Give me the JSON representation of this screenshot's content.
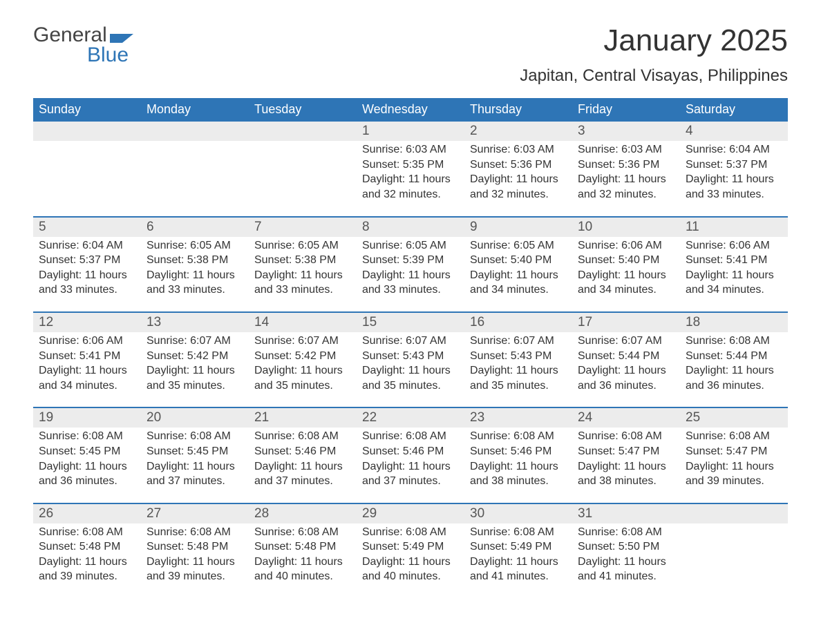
{
  "logo": {
    "text_top": "General",
    "text_bottom": "Blue",
    "shape_color": "#2e75b6",
    "top_color": "#444444",
    "bottom_color": "#2e75b6"
  },
  "title": "January 2025",
  "location": "Japitan, Central Visayas, Philippines",
  "colors": {
    "header_band": "#2e75b6",
    "header_text": "#ffffff",
    "daynum_band": "#ececec",
    "week_divider": "#2e75b6",
    "body_text": "#333333",
    "background": "#ffffff"
  },
  "typography": {
    "title_fontsize": 44,
    "location_fontsize": 24,
    "weekday_fontsize": 18,
    "daynum_fontsize": 19,
    "body_fontsize": 16,
    "font_family": "Arial"
  },
  "weekdays": [
    "Sunday",
    "Monday",
    "Tuesday",
    "Wednesday",
    "Thursday",
    "Friday",
    "Saturday"
  ],
  "labels": {
    "sunrise": "Sunrise",
    "sunset": "Sunset",
    "daylight": "Daylight"
  },
  "weeks": [
    [
      null,
      null,
      null,
      {
        "n": "1",
        "sunrise": "6:03 AM",
        "sunset": "5:35 PM",
        "daylight": "11 hours and 32 minutes."
      },
      {
        "n": "2",
        "sunrise": "6:03 AM",
        "sunset": "5:36 PM",
        "daylight": "11 hours and 32 minutes."
      },
      {
        "n": "3",
        "sunrise": "6:03 AM",
        "sunset": "5:36 PM",
        "daylight": "11 hours and 32 minutes."
      },
      {
        "n": "4",
        "sunrise": "6:04 AM",
        "sunset": "5:37 PM",
        "daylight": "11 hours and 33 minutes."
      }
    ],
    [
      {
        "n": "5",
        "sunrise": "6:04 AM",
        "sunset": "5:37 PM",
        "daylight": "11 hours and 33 minutes."
      },
      {
        "n": "6",
        "sunrise": "6:05 AM",
        "sunset": "5:38 PM",
        "daylight": "11 hours and 33 minutes."
      },
      {
        "n": "7",
        "sunrise": "6:05 AM",
        "sunset": "5:38 PM",
        "daylight": "11 hours and 33 minutes."
      },
      {
        "n": "8",
        "sunrise": "6:05 AM",
        "sunset": "5:39 PM",
        "daylight": "11 hours and 33 minutes."
      },
      {
        "n": "9",
        "sunrise": "6:05 AM",
        "sunset": "5:40 PM",
        "daylight": "11 hours and 34 minutes."
      },
      {
        "n": "10",
        "sunrise": "6:06 AM",
        "sunset": "5:40 PM",
        "daylight": "11 hours and 34 minutes."
      },
      {
        "n": "11",
        "sunrise": "6:06 AM",
        "sunset": "5:41 PM",
        "daylight": "11 hours and 34 minutes."
      }
    ],
    [
      {
        "n": "12",
        "sunrise": "6:06 AM",
        "sunset": "5:41 PM",
        "daylight": "11 hours and 34 minutes."
      },
      {
        "n": "13",
        "sunrise": "6:07 AM",
        "sunset": "5:42 PM",
        "daylight": "11 hours and 35 minutes."
      },
      {
        "n": "14",
        "sunrise": "6:07 AM",
        "sunset": "5:42 PM",
        "daylight": "11 hours and 35 minutes."
      },
      {
        "n": "15",
        "sunrise": "6:07 AM",
        "sunset": "5:43 PM",
        "daylight": "11 hours and 35 minutes."
      },
      {
        "n": "16",
        "sunrise": "6:07 AM",
        "sunset": "5:43 PM",
        "daylight": "11 hours and 35 minutes."
      },
      {
        "n": "17",
        "sunrise": "6:07 AM",
        "sunset": "5:44 PM",
        "daylight": "11 hours and 36 minutes."
      },
      {
        "n": "18",
        "sunrise": "6:08 AM",
        "sunset": "5:44 PM",
        "daylight": "11 hours and 36 minutes."
      }
    ],
    [
      {
        "n": "19",
        "sunrise": "6:08 AM",
        "sunset": "5:45 PM",
        "daylight": "11 hours and 36 minutes."
      },
      {
        "n": "20",
        "sunrise": "6:08 AM",
        "sunset": "5:45 PM",
        "daylight": "11 hours and 37 minutes."
      },
      {
        "n": "21",
        "sunrise": "6:08 AM",
        "sunset": "5:46 PM",
        "daylight": "11 hours and 37 minutes."
      },
      {
        "n": "22",
        "sunrise": "6:08 AM",
        "sunset": "5:46 PM",
        "daylight": "11 hours and 37 minutes."
      },
      {
        "n": "23",
        "sunrise": "6:08 AM",
        "sunset": "5:46 PM",
        "daylight": "11 hours and 38 minutes."
      },
      {
        "n": "24",
        "sunrise": "6:08 AM",
        "sunset": "5:47 PM",
        "daylight": "11 hours and 38 minutes."
      },
      {
        "n": "25",
        "sunrise": "6:08 AM",
        "sunset": "5:47 PM",
        "daylight": "11 hours and 39 minutes."
      }
    ],
    [
      {
        "n": "26",
        "sunrise": "6:08 AM",
        "sunset": "5:48 PM",
        "daylight": "11 hours and 39 minutes."
      },
      {
        "n": "27",
        "sunrise": "6:08 AM",
        "sunset": "5:48 PM",
        "daylight": "11 hours and 39 minutes."
      },
      {
        "n": "28",
        "sunrise": "6:08 AM",
        "sunset": "5:48 PM",
        "daylight": "11 hours and 40 minutes."
      },
      {
        "n": "29",
        "sunrise": "6:08 AM",
        "sunset": "5:49 PM",
        "daylight": "11 hours and 40 minutes."
      },
      {
        "n": "30",
        "sunrise": "6:08 AM",
        "sunset": "5:49 PM",
        "daylight": "11 hours and 41 minutes."
      },
      {
        "n": "31",
        "sunrise": "6:08 AM",
        "sunset": "5:50 PM",
        "daylight": "11 hours and 41 minutes."
      },
      null
    ]
  ]
}
